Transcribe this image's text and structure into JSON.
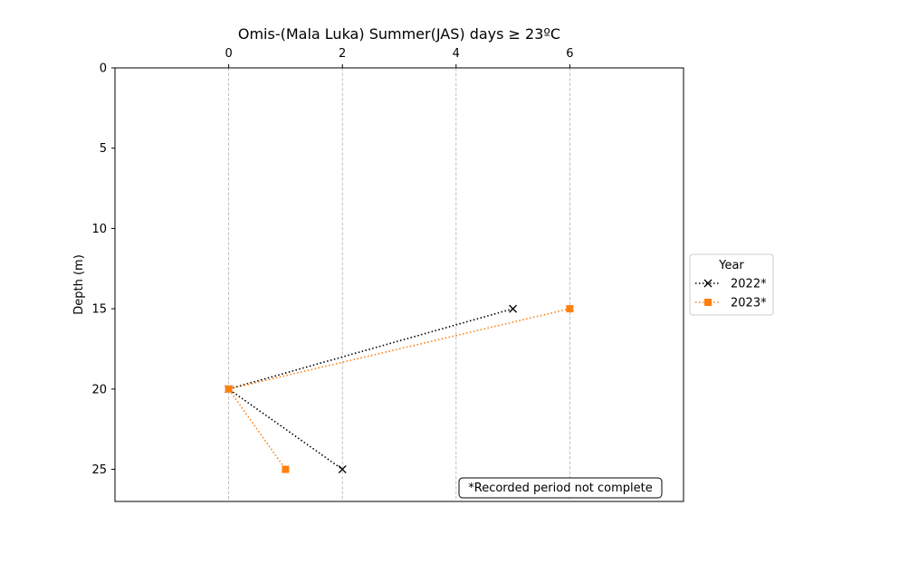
{
  "chart_data": {
    "type": "line",
    "title": "Omis-(Mala Luka) Summer(JAS) days ≥ 23ºC",
    "xlabel": "",
    "ylabel": "Depth (m)",
    "x_axis_position": "top",
    "y_axis_inverted": true,
    "xlim": [
      -2,
      8
    ],
    "ylim": [
      0,
      27
    ],
    "x_ticks": [
      "0",
      "2",
      "4",
      "6"
    ],
    "y_ticks": [
      "0",
      "5",
      "10",
      "15",
      "20",
      "25"
    ],
    "x_grid": true,
    "y_grid": false,
    "legend": {
      "title": "Year",
      "placement": "outside-right"
    },
    "series": [
      {
        "name": "2022*",
        "color": "#000000",
        "marker": "x",
        "line_style": "dotted",
        "points": [
          {
            "x": 5,
            "y": 15
          },
          {
            "x": 0,
            "y": 20
          },
          {
            "x": 2,
            "y": 25
          }
        ]
      },
      {
        "name": "2023*",
        "color": "#ff7f0e",
        "marker": "square",
        "line_style": "dotted",
        "points": [
          {
            "x": 6,
            "y": 15
          },
          {
            "x": 0,
            "y": 20
          },
          {
            "x": 1,
            "y": 25
          }
        ]
      }
    ],
    "annotation": "*Recorded period not complete"
  }
}
